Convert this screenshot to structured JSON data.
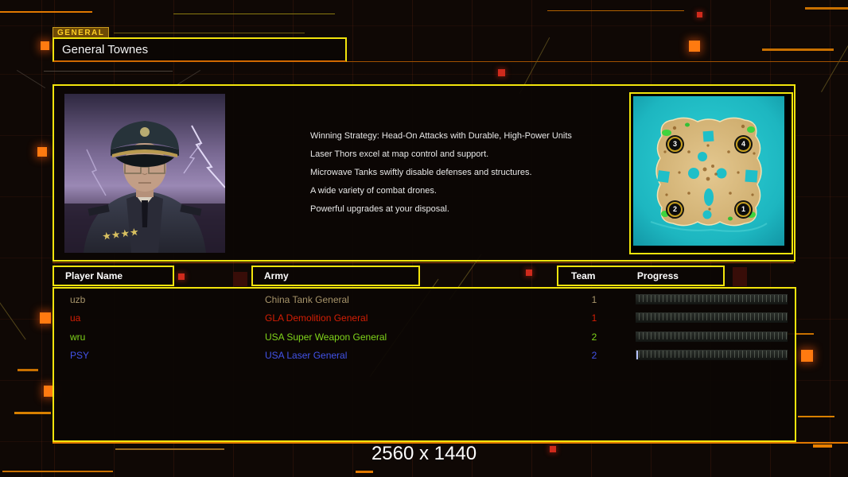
{
  "window": {
    "resolution_label": "2560 x 1440"
  },
  "general": {
    "tag": "GENERAL",
    "name": "General Townes"
  },
  "briefing": {
    "lines": [
      "Winning Strategy: Head-On Attacks with Durable, High-Power Units",
      "Laser Thors excel at map control and support.",
      "Microwave Tanks swiftly disable defenses and structures.",
      "A wide variety of combat drones.",
      "Powerful upgrades at your disposal."
    ]
  },
  "map_preview": {
    "markers": [
      {
        "label": "3"
      },
      {
        "label": "4"
      },
      {
        "label": "2"
      },
      {
        "label": "1"
      }
    ]
  },
  "table": {
    "player_col": "Player Name",
    "army_col": "Army",
    "team_col": "Team",
    "progress_col": "Progress"
  },
  "players": [
    {
      "name": "uzb",
      "army": "China Tank General",
      "team": "1",
      "color": "#a7946a",
      "progress_pct": 0
    },
    {
      "name": "ua",
      "army": "GLA Demolition General",
      "team": "1",
      "color": "#d41e04",
      "progress_pct": 0
    },
    {
      "name": "wru",
      "army": "USA Super Weapon General",
      "team": "2",
      "color": "#7fd41a",
      "progress_pct": 0
    },
    {
      "name": "PSY",
      "army": "USA Laser General",
      "team": "2",
      "color": "#4253ea",
      "progress_pct": 1.2
    }
  ],
  "colors": {
    "accent_yellow": "#f2e40c",
    "accent_orange": "#e07800",
    "bar_fill": "#b8c2ff"
  }
}
